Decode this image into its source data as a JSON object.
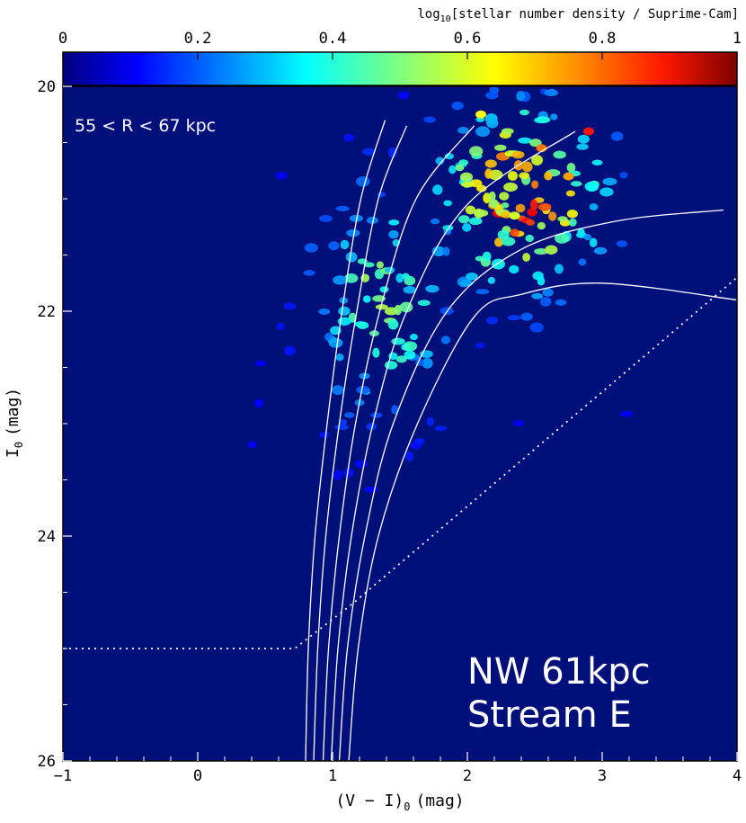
{
  "chart_data": {
    "type": "heatmap",
    "colorbar": {
      "title_prefix": "log",
      "title_sub": "10",
      "title_rest": "[stellar number density / Suprime-Cam]",
      "ticks": [
        "0",
        "0.2",
        "0.4",
        "0.6",
        "0.8",
        "1"
      ],
      "range": [
        0,
        1
      ],
      "colormap": "jet",
      "placement": "top"
    },
    "x_axis": {
      "label": "(V − I)",
      "label_sub": "0",
      "label_unit": "(mag)",
      "range": [
        -1,
        4
      ],
      "ticks": [
        "−1",
        "0",
        "1",
        "2",
        "3",
        "4"
      ]
    },
    "y_axis": {
      "label": "I",
      "label_sub": "0",
      "label_unit": "(mag)",
      "range": [
        26,
        20
      ],
      "inverted": true,
      "ticks": [
        "20",
        "22",
        "24",
        "26"
      ]
    },
    "background_color": "#00107a",
    "annotations": {
      "radius_range": "55 < R < 67 kpc",
      "field_name": "NW 61kpc",
      "stream_name": "Stream E"
    },
    "isochrones": [
      [
        [
          0.8,
          26.0
        ],
        [
          0.82,
          25.0
        ],
        [
          0.87,
          24.0
        ],
        [
          0.96,
          23.0
        ],
        [
          1.07,
          22.0
        ],
        [
          1.21,
          21.0
        ],
        [
          1.39,
          20.3
        ]
      ],
      [
        [
          0.86,
          26.0
        ],
        [
          0.89,
          25.0
        ],
        [
          0.95,
          24.0
        ],
        [
          1.05,
          23.0
        ],
        [
          1.18,
          22.0
        ],
        [
          1.34,
          21.0
        ],
        [
          1.55,
          20.35
        ]
      ],
      [
        [
          0.93,
          26.0
        ],
        [
          0.97,
          25.0
        ],
        [
          1.05,
          24.0
        ],
        [
          1.17,
          23.0
        ],
        [
          1.35,
          22.0
        ],
        [
          1.62,
          21.0
        ],
        [
          2.05,
          20.35
        ]
      ],
      [
        [
          0.99,
          26.0
        ],
        [
          1.04,
          25.0
        ],
        [
          1.14,
          24.0
        ],
        [
          1.3,
          23.0
        ],
        [
          1.55,
          22.0
        ],
        [
          2.0,
          21.05
        ],
        [
          2.8,
          20.4
        ]
      ],
      [
        [
          1.05,
          26.0
        ],
        [
          1.11,
          25.0
        ],
        [
          1.24,
          24.0
        ],
        [
          1.45,
          23.0
        ],
        [
          1.85,
          22.0
        ],
        [
          2.4,
          21.45
        ],
        [
          3.1,
          21.2
        ],
        [
          3.9,
          21.1
        ]
      ],
      [
        [
          1.12,
          26.0
        ],
        [
          1.19,
          25.0
        ],
        [
          1.34,
          24.0
        ],
        [
          1.63,
          23.0
        ],
        [
          2.05,
          22.05
        ],
        [
          2.4,
          21.85
        ],
        [
          3.0,
          21.75
        ],
        [
          4.0,
          21.9
        ]
      ]
    ],
    "completeness_limit": [
      [
        -1.0,
        25.0
      ],
      [
        0.72,
        25.0
      ],
      [
        1.15,
        24.6
      ],
      [
        4.0,
        21.7
      ]
    ]
  }
}
